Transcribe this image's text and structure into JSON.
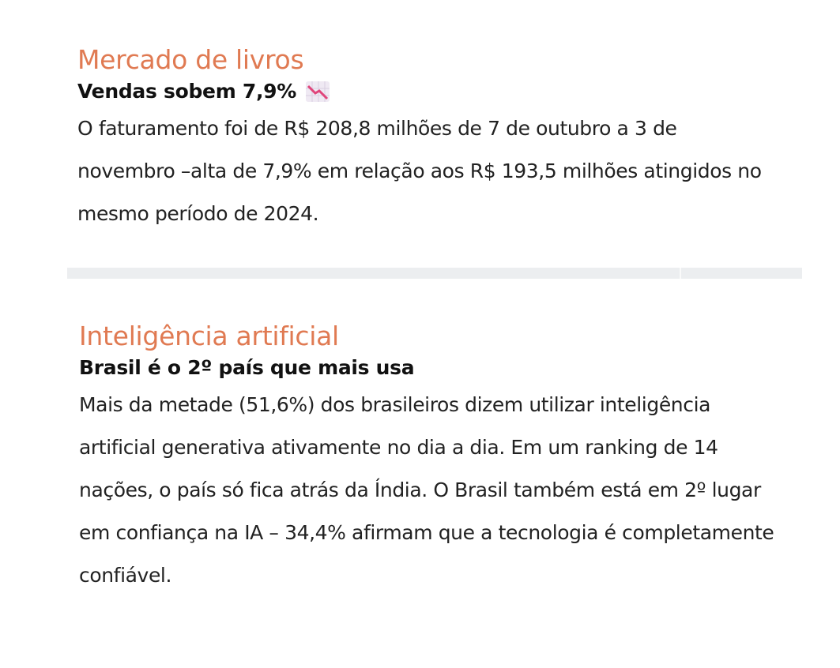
{
  "sections": [
    {
      "kicker": "Mercado de livros",
      "headline": "Vendas sobem 7,9%",
      "headline_icon": "chart-decreasing-icon",
      "body": "O faturamento foi de R$ 208,8 milhões de 7 de outubro a 3 de novembro –alta de 7,9% em relação aos R$ 193,5 milhões atingidos no mesmo período de 2024."
    },
    {
      "kicker": "Inteligência artificial",
      "headline": "Brasil é o 2º país que mais usa",
      "body": "Mais da metade (51,6%) dos brasileiros dizem utilizar inteligência artificial generativa ativamente no dia a dia. Em um ranking de 14 nações, o país só fica atrás da Índia. O Brasil também está em 2º lugar em confiança na IA – 34,4% afirmam que a tecnologia é completamente confiável."
    }
  ],
  "colors": {
    "kicker": "#e07a52",
    "divider": "#eceef0",
    "icon_line": "#e0457b"
  }
}
